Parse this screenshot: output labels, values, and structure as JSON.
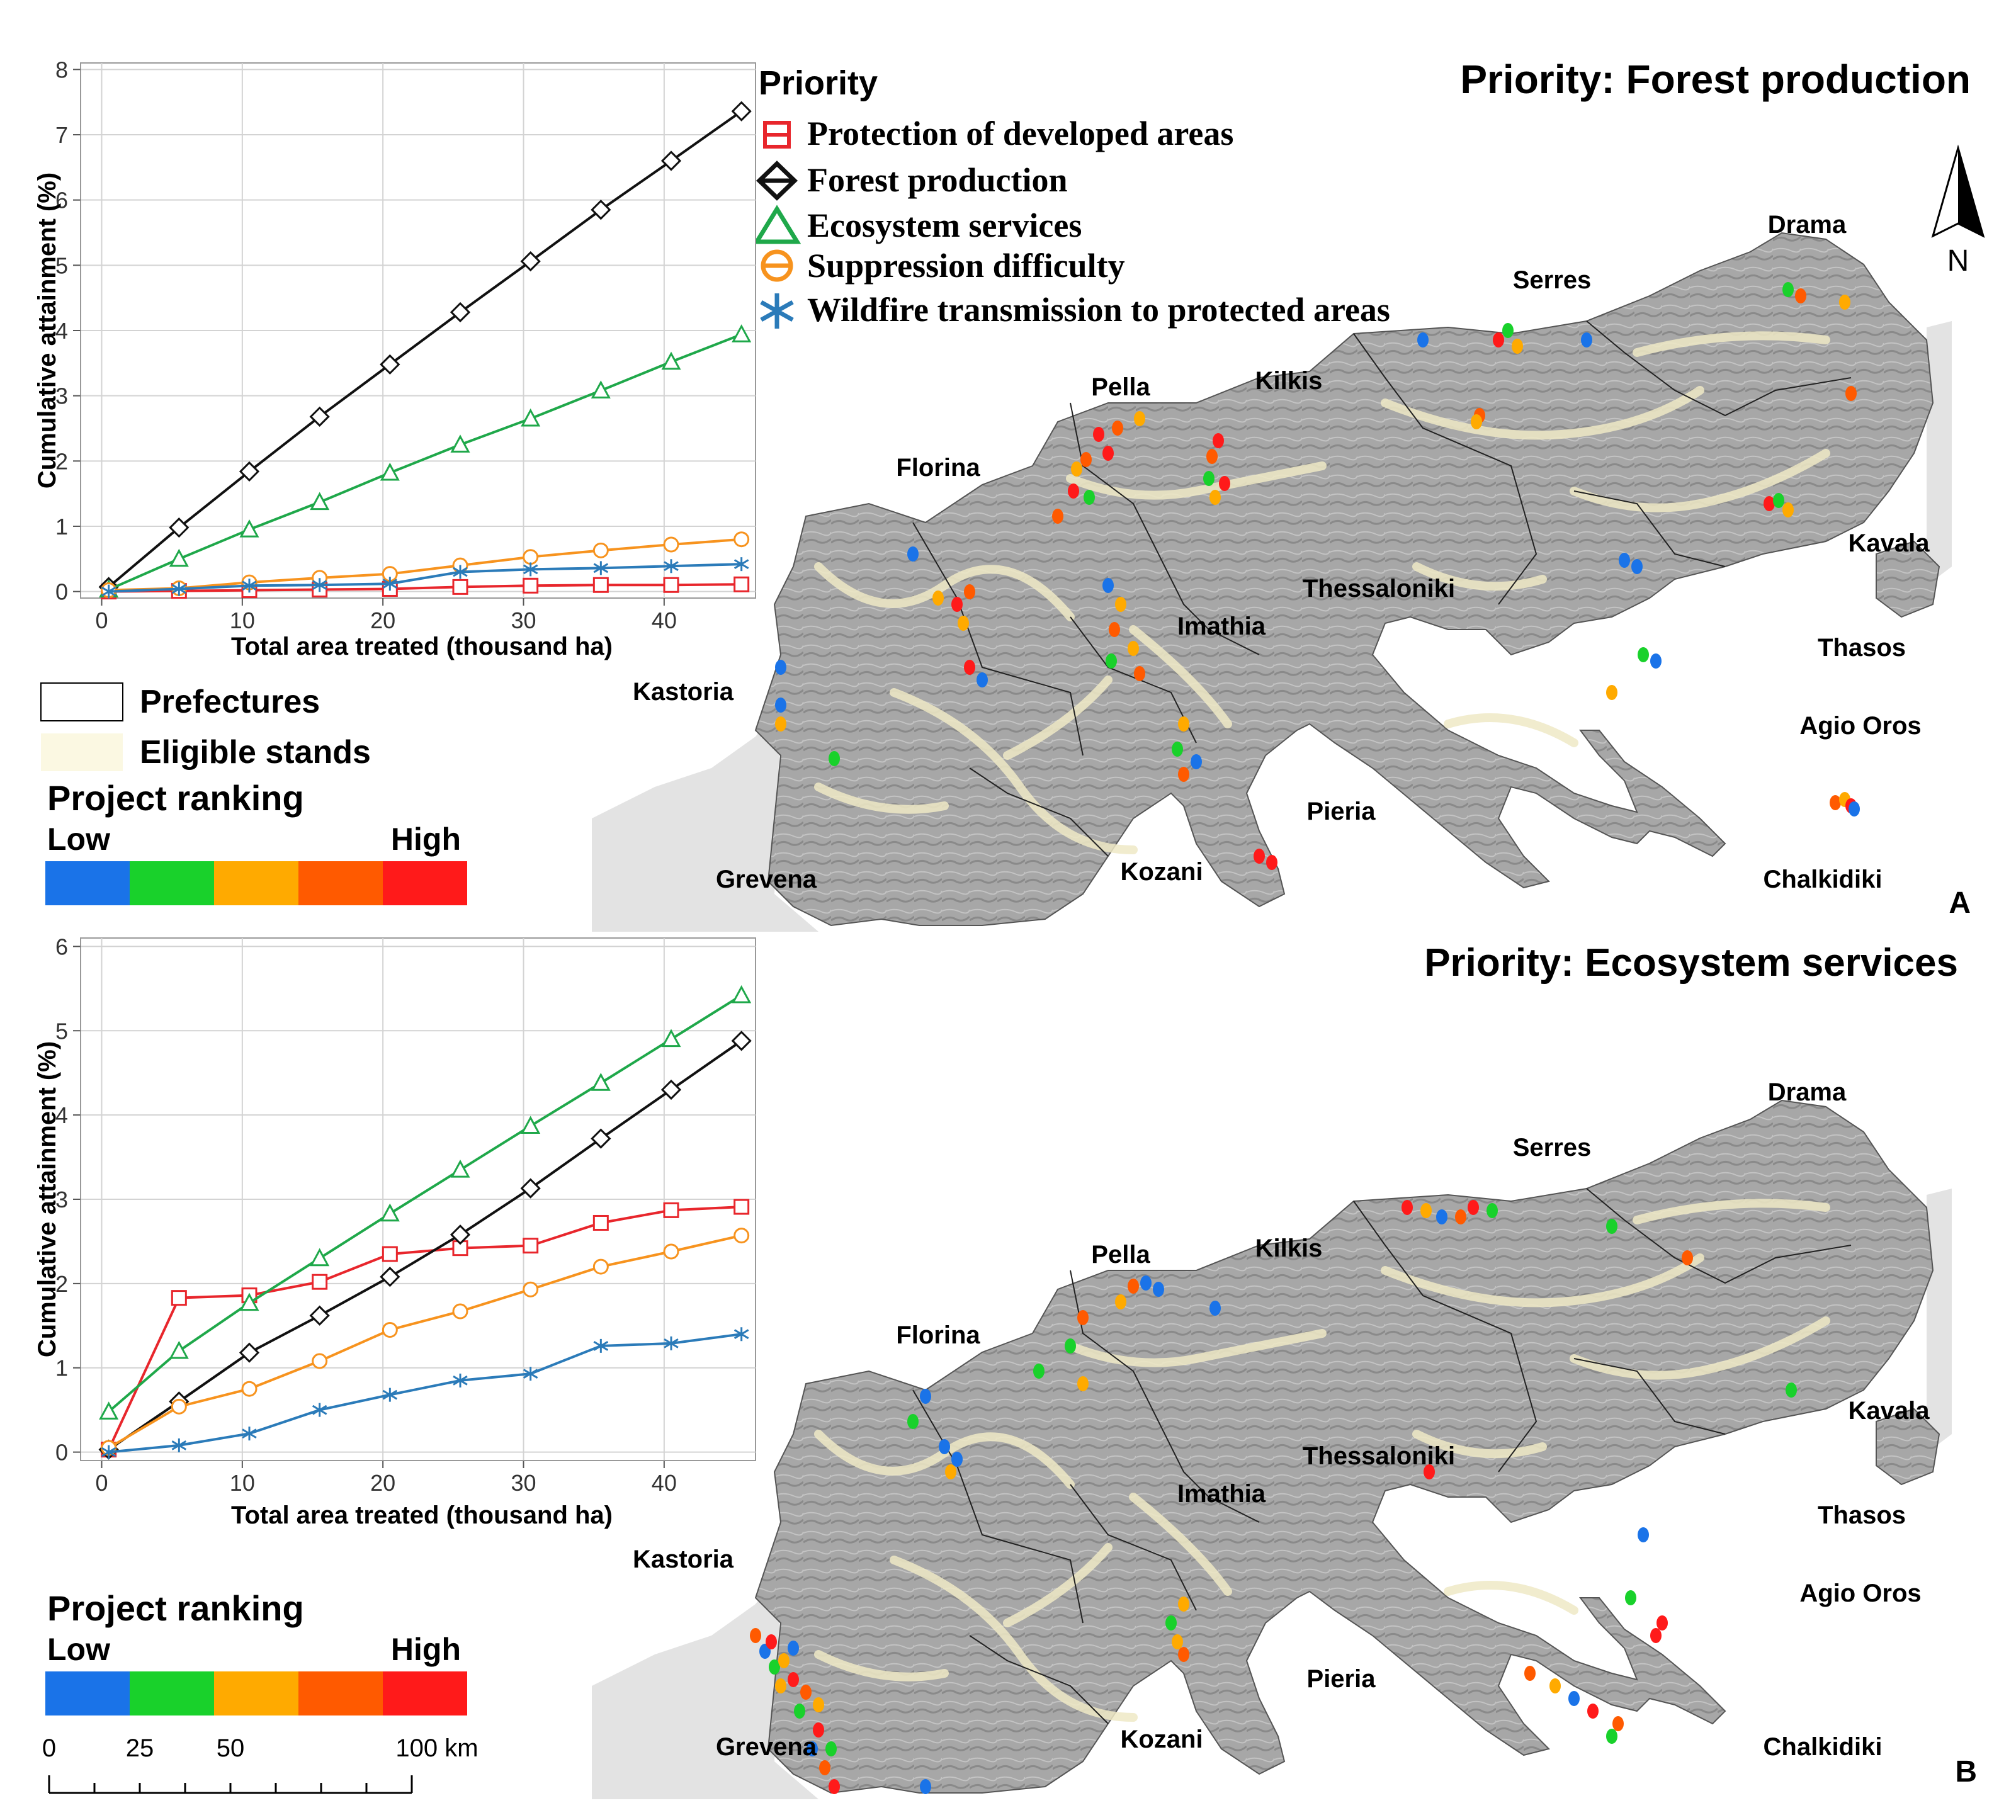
{
  "panels": {
    "A": {
      "letter": "A",
      "title": "Priority: Forest production",
      "map_labels": {
        "drama": "Drama",
        "serres": "Serres",
        "pella": "Pella",
        "kilkis": "Kilkis",
        "florina": "Florina",
        "kavala": "Kavala",
        "thessaloniki": "Thessaloniki",
        "imathia": "Imathia",
        "thasos": "Thasos",
        "kastoria": "Kastoria",
        "agio_oros": "Agio Oros",
        "pieria": "Pieria",
        "grevena": "Grevena",
        "kozani": "Kozani",
        "chalkidiki": "Chalkidiki"
      },
      "north_label": "N"
    },
    "B": {
      "letter": "B",
      "title": "Priority: Ecosystem services",
      "map_labels": {
        "drama": "Drama",
        "serres": "Serres",
        "pella": "Pella",
        "kilkis": "Kilkis",
        "florina": "Florina",
        "kavala": "Kavala",
        "thessaloniki": "Thessaloniki",
        "imathia": "Imathia",
        "thasos": "Thasos",
        "kastoria": "Kastoria",
        "agio_oros": "Agio Oros",
        "pieria": "Pieria",
        "grevena": "Grevena",
        "kozani": "Kozani",
        "chalkidiki": "Chalkidiki"
      }
    }
  },
  "priority_legend": {
    "title": "Priority",
    "items": [
      "Protection of developed areas",
      "Forest production",
      "Ecosystem services",
      "Suppression difficulty",
      "Wildfire transmission to protected areas"
    ]
  },
  "map_legend": {
    "prefectures": "Prefectures",
    "eligible": "Eligible stands"
  },
  "ranking_legend": {
    "title": "Project ranking",
    "low": "Low",
    "high": "High",
    "colors": [
      "#1a73e8",
      "#19d12b",
      "#ffaa00",
      "#ff5a00",
      "#ff1a1a"
    ]
  },
  "scale_bar": {
    "labels": [
      "0",
      "25",
      "50",
      "100 km"
    ]
  },
  "colors": {
    "protection": "#e8262c",
    "forest": "#111111",
    "ecosystem": "#1fa84a",
    "suppression": "#f7931e",
    "wildfire": "#2b7bb9"
  },
  "chart_data": [
    {
      "type": "line",
      "title": "",
      "xlabel": "Total area treated (thousand ha)",
      "ylabel": "Cumulative attainment (%)",
      "xlim": [
        -1.5,
        46.5
      ],
      "ylim": [
        -0.1,
        8.1
      ],
      "xticks": [
        0,
        10,
        20,
        30,
        40
      ],
      "yticks": [
        0,
        1,
        2,
        3,
        4,
        5,
        6,
        7,
        8
      ],
      "x": [
        0.5,
        5.5,
        10.5,
        15.5,
        20.5,
        25.5,
        30.5,
        35.5,
        40.5,
        45.5
      ],
      "series": [
        {
          "name": "Protection of developed areas",
          "marker": "square",
          "values": [
            0.0,
            0.01,
            0.02,
            0.03,
            0.04,
            0.07,
            0.09,
            0.1,
            0.1,
            0.11
          ]
        },
        {
          "name": "Forest production",
          "marker": "diamond",
          "values": [
            0.07,
            0.98,
            1.84,
            2.68,
            3.48,
            4.28,
            5.06,
            5.85,
            6.6,
            7.36
          ]
        },
        {
          "name": "Ecosystem services",
          "marker": "triangle",
          "values": [
            0.03,
            0.5,
            0.95,
            1.37,
            1.82,
            2.25,
            2.65,
            3.08,
            3.52,
            3.94
          ]
        },
        {
          "name": "Suppression difficulty",
          "marker": "circle",
          "values": [
            0.02,
            0.05,
            0.14,
            0.21,
            0.27,
            0.4,
            0.53,
            0.63,
            0.72,
            0.8
          ]
        },
        {
          "name": "Wildfire transmission to protected areas",
          "marker": "star",
          "values": [
            0.0,
            0.04,
            0.09,
            0.1,
            0.12,
            0.3,
            0.34,
            0.36,
            0.39,
            0.42
          ]
        }
      ]
    },
    {
      "type": "line",
      "title": "",
      "xlabel": "Total area treated (thousand ha)",
      "ylabel": "Cumulative attainment (%)",
      "xlim": [
        -1.5,
        46.5
      ],
      "ylim": [
        -0.1,
        6.1
      ],
      "xticks": [
        0,
        10,
        20,
        30,
        40
      ],
      "yticks": [
        0,
        1,
        2,
        3,
        4,
        5,
        6
      ],
      "x": [
        0.5,
        5.5,
        10.5,
        15.5,
        20.5,
        25.5,
        30.5,
        35.5,
        40.5,
        45.5
      ],
      "series": [
        {
          "name": "Protection of developed areas",
          "marker": "square",
          "values": [
            0.03,
            1.83,
            1.86,
            2.02,
            2.35,
            2.42,
            2.45,
            2.72,
            2.87,
            2.91
          ]
        },
        {
          "name": "Forest production",
          "marker": "diamond",
          "values": [
            0.03,
            0.6,
            1.18,
            1.62,
            2.08,
            2.58,
            3.13,
            3.72,
            4.3,
            4.88
          ]
        },
        {
          "name": "Ecosystem services",
          "marker": "triangle",
          "values": [
            0.48,
            1.2,
            1.77,
            2.3,
            2.83,
            3.35,
            3.87,
            4.38,
            4.9,
            5.42
          ]
        },
        {
          "name": "Suppression difficulty",
          "marker": "circle",
          "values": [
            0.05,
            0.54,
            0.75,
            1.08,
            1.45,
            1.67,
            1.93,
            2.2,
            2.38,
            2.57
          ]
        },
        {
          "name": "Wildfire transmission to protected areas",
          "marker": "star",
          "values": [
            0.0,
            0.08,
            0.22,
            0.5,
            0.68,
            0.85,
            0.93,
            1.26,
            1.29,
            1.4
          ]
        }
      ]
    }
  ]
}
